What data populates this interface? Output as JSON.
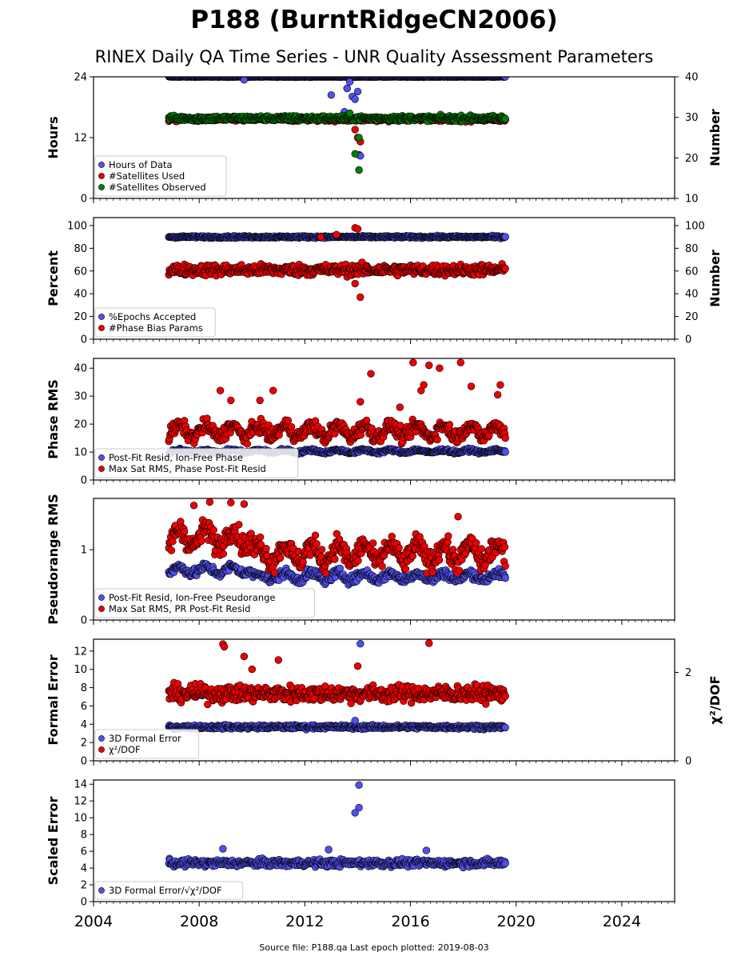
{
  "title": "P188 (BurntRidgeCN2006)",
  "subtitle": "RINEX Daily QA Time Series - UNR Quality Assessment Parameters",
  "footer": {
    "source_label": "Source file: P188.qa",
    "last_epoch_label": "Last epoch plotted: 2019-08-03",
    "text": "Source file: P188.qa Last epoch plotted: 2019-08-03"
  },
  "colors": {
    "blue": "#5050f0",
    "red": "#ee0000",
    "green": "#008000",
    "edge": "#000000"
  },
  "chart_data": [
    {
      "type": "scatter",
      "id": "hours",
      "ylabel": "Hours",
      "ylabel_right": "Number",
      "ylim": [
        0,
        24
      ],
      "yticks": [
        "0",
        "12",
        "24"
      ],
      "ylim_right": [
        10,
        40
      ],
      "yticks_right": [
        "10",
        "20",
        "30",
        "40"
      ],
      "xlim": [
        2004,
        2026
      ],
      "legend_position": "lower-left",
      "legend": [
        "Hours of Data",
        "#Satellites Used",
        "#Satellites Observed"
      ],
      "series": [
        {
          "name": "Hours of Data",
          "axis": "left",
          "color": "blue",
          "x_range": [
            2006.85,
            2019.59
          ],
          "base": 24,
          "spread": 0.1,
          "outliers": [
            [
              2009.7,
              23.4
            ],
            [
              2013.0,
              20.4
            ],
            [
              2013.7,
              23.0
            ],
            [
              2013.5,
              17.1
            ],
            [
              2013.6,
              21.7
            ],
            [
              2013.8,
              20.1
            ],
            [
              2013.9,
              19.6
            ],
            [
              2014.0,
              21.1
            ],
            [
              2014.05,
              8.6
            ],
            [
              2014.1,
              8.4
            ]
          ]
        },
        {
          "name": "#Satellites Used",
          "axis": "right",
          "color": "red",
          "x_range": [
            2006.85,
            2019.59
          ],
          "base": 29.5,
          "spread": 0.8,
          "outliers": [
            [
              2008.85,
              30.0
            ],
            [
              2013.9,
              27.0
            ],
            [
              2014.0,
              25.0
            ],
            [
              2014.1,
              24.0
            ]
          ]
        },
        {
          "name": "#Satellites Observed",
          "axis": "right",
          "color": "green",
          "x_range": [
            2006.85,
            2019.59
          ],
          "base": 29.8,
          "spread": 1.0,
          "outliers": [
            [
              2013.9,
              21.0
            ],
            [
              2014.05,
              25.0
            ],
            [
              2014.05,
              17.0
            ],
            [
              2013.7,
              31.0
            ]
          ]
        }
      ]
    },
    {
      "type": "scatter",
      "id": "percent",
      "ylabel": "Percent",
      "ylabel_right": "Number",
      "ylim": [
        0,
        107
      ],
      "yticks": [
        "0",
        "20",
        "40",
        "60",
        "80",
        "100"
      ],
      "ylim_right": [
        0,
        107
      ],
      "yticks_right": [
        "0",
        "20",
        "40",
        "60",
        "80",
        "100"
      ],
      "xlim": [
        2004,
        2026
      ],
      "legend_position": "lower-left",
      "legend": [
        "%Epochs Accepted",
        "#Phase Bias Params"
      ],
      "series": [
        {
          "name": "%Epochs Accepted",
          "axis": "left",
          "color": "blue",
          "x_range": [
            2006.85,
            2019.59
          ],
          "base": 90,
          "spread": 1.5,
          "outliers": []
        },
        {
          "name": "#Phase Bias Params",
          "axis": "right",
          "color": "red",
          "x_range": [
            2006.85,
            2019.59
          ],
          "base": 61,
          "spread": 8,
          "outliers": [
            [
              2012.6,
              90
            ],
            [
              2013.9,
              98
            ],
            [
              2014.0,
              97
            ],
            [
              2013.9,
              49
            ],
            [
              2014.1,
              37
            ],
            [
              2013.2,
              92
            ]
          ]
        }
      ]
    },
    {
      "type": "scatter",
      "id": "phase",
      "ylabel": "Phase RMS",
      "ylim": [
        0,
        43.5
      ],
      "yticks": [
        "0",
        "10",
        "20",
        "30",
        "40"
      ],
      "xlim": [
        2004,
        2026
      ],
      "legend_position": "lower-left",
      "legend": [
        "Post-Fit Resid, Ion-Free Phase",
        "Max Sat RMS, Phase Post-Fit Resid"
      ],
      "series": [
        {
          "name": "Post-Fit Resid, Ion-Free Phase",
          "axis": "left",
          "color": "blue",
          "x_range": [
            2006.85,
            2019.59
          ],
          "base": 10.3,
          "spread": 0.9,
          "outliers": []
        },
        {
          "name": "Max Sat RMS, Phase Post-Fit Resid",
          "axis": "left",
          "color": "red",
          "x_range": [
            2006.85,
            2019.59
          ],
          "base": 17.5,
          "spread": 4,
          "outliers": [
            [
              2008.8,
              32
            ],
            [
              2009.2,
              28.5
            ],
            [
              2010.3,
              28.5
            ],
            [
              2010.8,
              32
            ],
            [
              2014.1,
              28
            ],
            [
              2014.5,
              38
            ],
            [
              2015.6,
              26
            ],
            [
              2016.1,
              42
            ],
            [
              2016.4,
              32
            ],
            [
              2016.5,
              34
            ],
            [
              2016.7,
              41
            ],
            [
              2017.1,
              40
            ],
            [
              2017.9,
              42
            ],
            [
              2018.3,
              33.5
            ],
            [
              2019.4,
              34
            ],
            [
              2019.3,
              30.5
            ]
          ]
        }
      ]
    },
    {
      "type": "scatter",
      "id": "pseudorange",
      "ylabel": "Pseudorange RMS",
      "ylim": [
        0,
        1.73
      ],
      "yticks": [
        "0",
        "1"
      ],
      "xlim": [
        2004,
        2026
      ],
      "legend_position": "lower-left",
      "legend": [
        "Post-Fit Resid, Ion-Free Pseudorange",
        "Max Sat RMS, PR Post-Fit Resid"
      ],
      "series": [
        {
          "name": "Post-Fit Resid, Ion-Free Pseudorange",
          "axis": "left",
          "color": "blue",
          "x_range": [
            2006.85,
            2019.59
          ],
          "base": 0.62,
          "spread": 0.1,
          "outliers": []
        },
        {
          "name": "Max Sat RMS, PR Post-Fit Resid",
          "axis": "left",
          "color": "red",
          "x_range": [
            2006.85,
            2019.59
          ],
          "base": 0.95,
          "spread": 0.25,
          "outliers": [
            [
              2007.8,
              1.63
            ],
            [
              2008.4,
              1.68
            ],
            [
              2009.2,
              1.67
            ],
            [
              2009.7,
              1.65
            ],
            [
              2017.8,
              1.47
            ]
          ]
        }
      ]
    },
    {
      "type": "scatter",
      "id": "formal",
      "ylabel": "Formal Error",
      "ylabel_right": "χ²/DOF",
      "ylim": [
        0,
        13.3
      ],
      "yticks": [
        "0",
        "2",
        "4",
        "6",
        "8",
        "10",
        "12"
      ],
      "ylim_right": [
        0,
        2.75
      ],
      "yticks_right": [
        "0",
        "2"
      ],
      "xlim": [
        2004,
        2026
      ],
      "legend_position": "lower-left",
      "legend": [
        "3D Formal Error",
        "χ²/DOF"
      ],
      "series": [
        {
          "name": "3D Formal Error",
          "axis": "left",
          "color": "blue",
          "x_range": [
            2006.85,
            2019.59
          ],
          "base": 3.7,
          "spread": 0.35,
          "outliers": [
            [
              2014.1,
              12.8
            ],
            [
              2013.9,
              4.4
            ]
          ]
        },
        {
          "name": "χ²/DOF",
          "axis": "right",
          "color": "red",
          "x_range": [
            2006.85,
            2019.59
          ],
          "base": 1.52,
          "spread": 0.3,
          "outliers": [
            [
              2008.9,
              2.64
            ],
            [
              2008.95,
              2.58
            ],
            [
              2009.7,
              2.36
            ],
            [
              2010.0,
              2.07
            ],
            [
              2016.7,
              2.66
            ],
            [
              2014.0,
              2.14
            ],
            [
              2011.0,
              2.28
            ]
          ]
        }
      ]
    },
    {
      "type": "scatter",
      "id": "scaled",
      "ylabel": "Scaled Error",
      "ylim": [
        0,
        14.5
      ],
      "yticks": [
        "0",
        "2",
        "4",
        "6",
        "8",
        "10",
        "12",
        "14"
      ],
      "xlim": [
        2004,
        2026
      ],
      "xticks": [
        "2004",
        "2008",
        "2012",
        "2016",
        "2020",
        "2024"
      ],
      "legend_position": "lower-left",
      "legend": [
        "3D Formal Error/√χ²/DOF"
      ],
      "series": [
        {
          "name": "3D Formal Error/√χ²/DOF",
          "axis": "left",
          "color": "blue",
          "x_range": [
            2006.85,
            2019.59
          ],
          "base": 4.6,
          "spread": 0.7,
          "outliers": [
            [
              2013.9,
              10.6
            ],
            [
              2014.05,
              11.2
            ],
            [
              2014.05,
              13.9
            ],
            [
              2016.6,
              6.1
            ],
            [
              2008.9,
              6.3
            ],
            [
              2012.9,
              6.2
            ]
          ]
        }
      ]
    }
  ]
}
